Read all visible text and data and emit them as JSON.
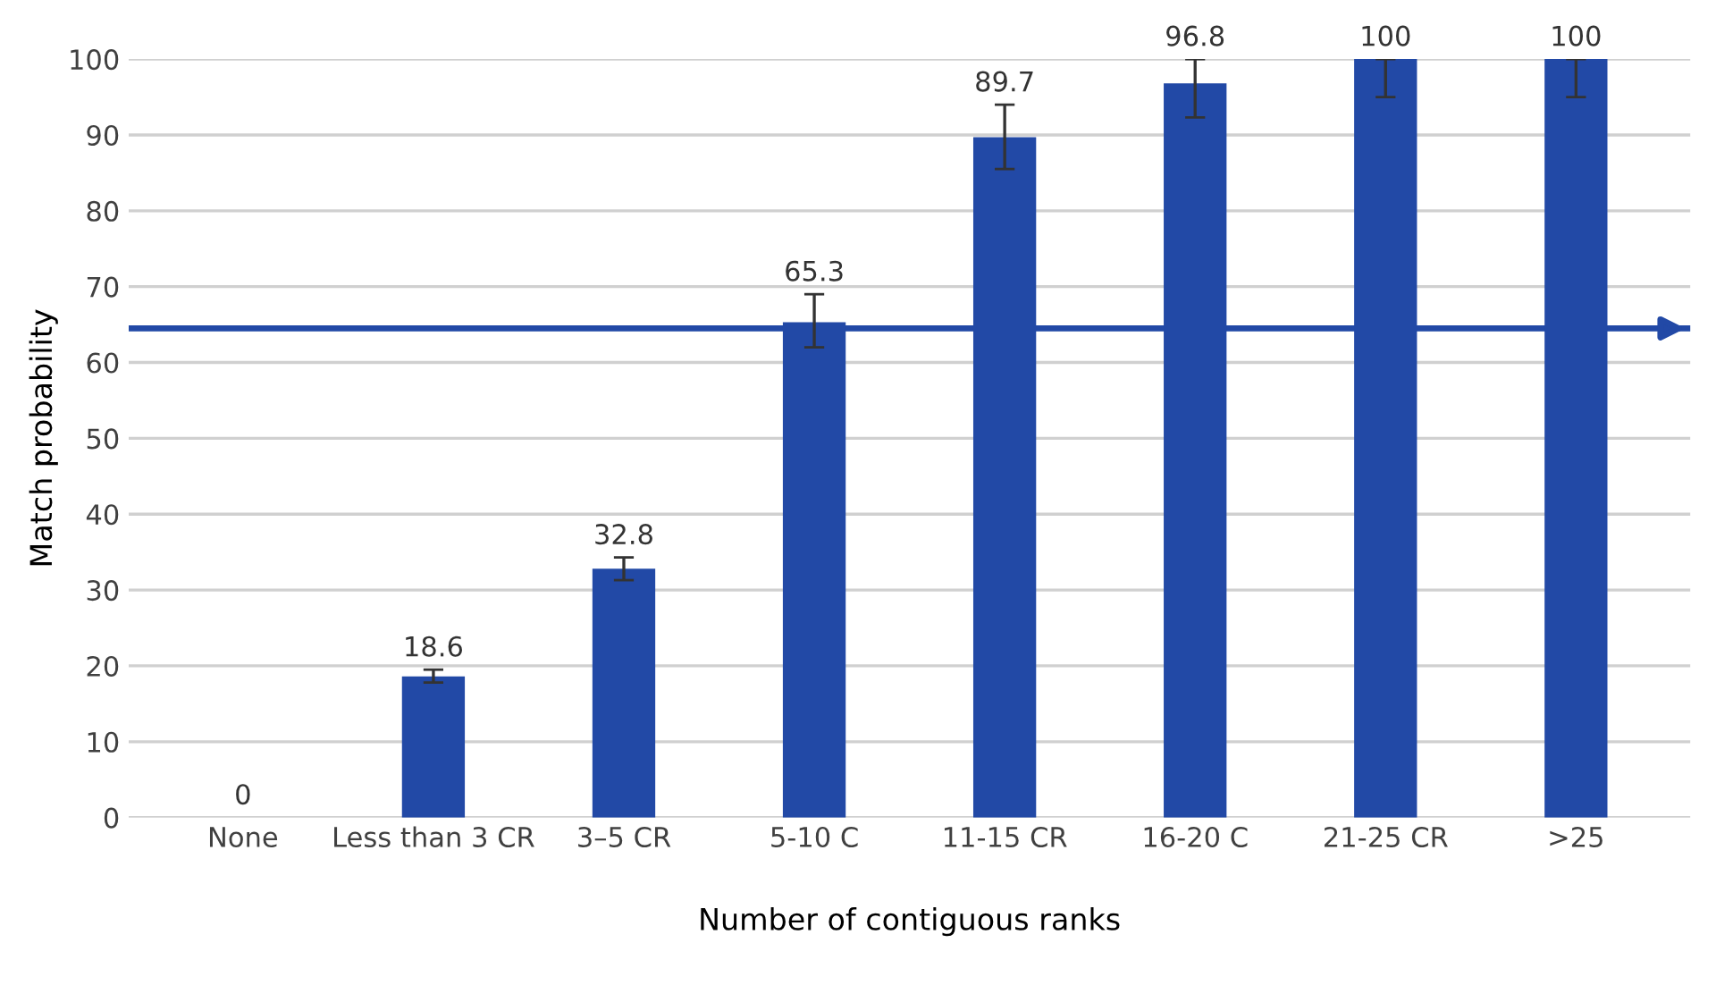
{
  "chart_data": {
    "type": "bar",
    "xlabel": "Number of contiguous ranks",
    "ylabel": "Match probability",
    "categories": [
      "None",
      "Less than 3 CR",
      "3–5 CR",
      "5-10 C",
      "11-15 CR",
      "16-20 C",
      "21-25 CR",
      ">25"
    ],
    "values": [
      0,
      18.6,
      32.8,
      65.3,
      89.7,
      96.8,
      100,
      100
    ],
    "errors": [
      null,
      [
        17.8,
        19.5
      ],
      [
        31.3,
        34.3
      ],
      [
        62,
        69
      ],
      [
        85.5,
        94
      ],
      [
        92.3,
        100
      ],
      [
        95,
        100
      ],
      [
        95,
        100
      ]
    ],
    "color": "#2249a6",
    "data_labels": true,
    "ylim": [
      0,
      100
    ],
    "yticks": [
      0,
      10,
      20,
      30,
      40,
      50,
      60,
      70,
      80,
      90,
      100
    ],
    "grid": "y",
    "ref_lines": [
      {
        "axis": "y",
        "value": 64.5,
        "color": "#2249a6"
      }
    ]
  }
}
